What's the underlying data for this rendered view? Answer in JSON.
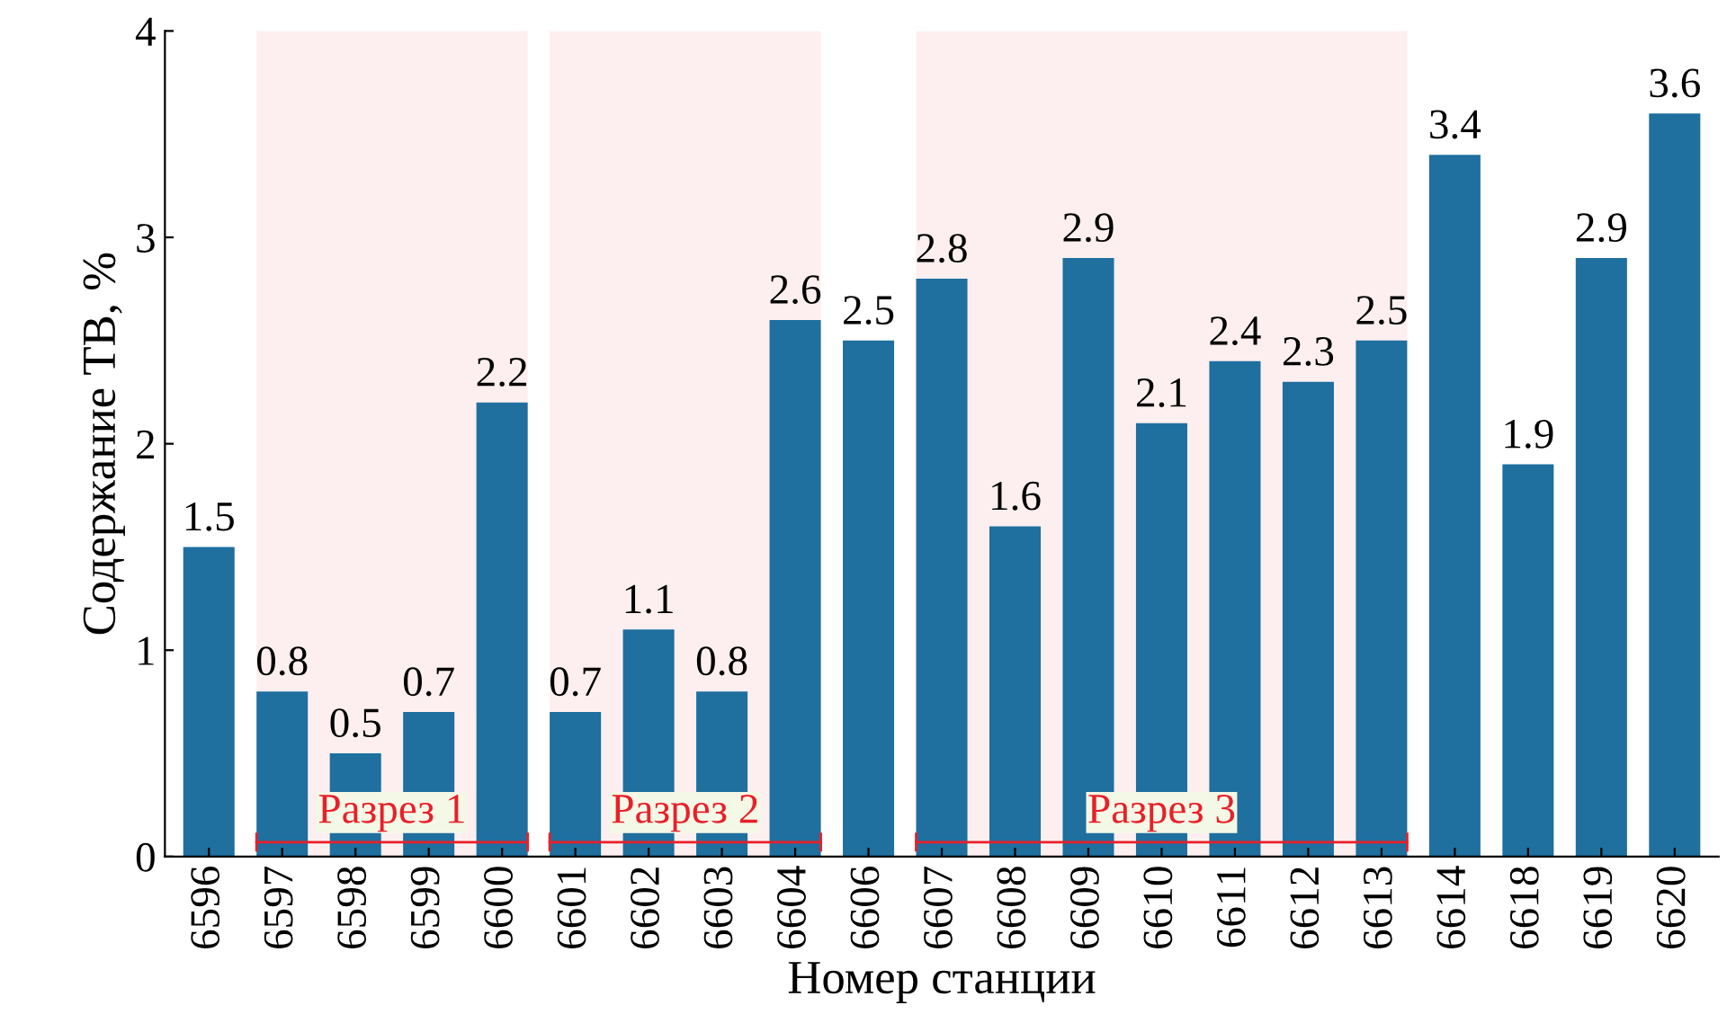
{
  "chart_data": {
    "type": "bar",
    "xlabel": "Номер станции",
    "ylabel": "Содержание ТВ, %",
    "categories": [
      "6596",
      "6597",
      "6598",
      "6599",
      "6600",
      "6601",
      "6602",
      "6603",
      "6604",
      "6606",
      "6607",
      "6608",
      "6609",
      "6610",
      "6611",
      "6612",
      "6613",
      "6614",
      "6618",
      "6619",
      "6620"
    ],
    "values": [
      1.5,
      0.8,
      0.5,
      0.7,
      2.2,
      0.7,
      1.1,
      0.8,
      2.6,
      2.5,
      2.8,
      1.6,
      2.9,
      2.1,
      2.4,
      2.3,
      2.5,
      3.4,
      1.9,
      2.9,
      3.6
    ],
    "color": "#1f6f9f",
    "data_labels": true,
    "ylim": [
      0,
      4
    ],
    "yticks": [
      0,
      1,
      2,
      3,
      4
    ],
    "grid": false,
    "legend": false,
    "bands": [
      {
        "axis": "x",
        "from": "6597",
        "to": "6600",
        "label": "Разрез 1",
        "color": "#e8202a"
      },
      {
        "axis": "x",
        "from": "6601",
        "to": "6604",
        "label": "Разрез 2",
        "color": "#e8202a"
      },
      {
        "axis": "x",
        "from": "6607",
        "to": "6613",
        "label": "Разрез 3",
        "color": "#e8202a"
      }
    ]
  }
}
